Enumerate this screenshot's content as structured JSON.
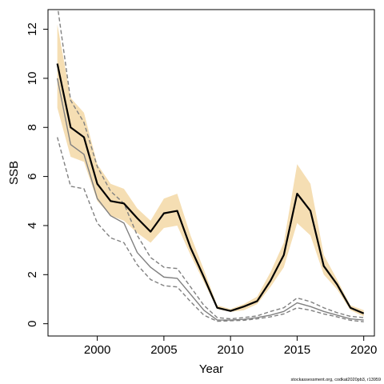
{
  "chart_data": {
    "type": "line",
    "xlabel": "Year",
    "ylabel": "SSB",
    "xlim": [
      1996.3,
      2020.8
    ],
    "ylim": [
      -0.5,
      12.8
    ],
    "x_ticks": [
      2000,
      2005,
      2010,
      2015,
      2020
    ],
    "y_ticks": [
      0,
      2,
      4,
      6,
      8,
      10,
      12
    ],
    "grid": false,
    "legend": "none",
    "footnote": "stockassessment.org, codkat2020pb3, r13959",
    "colors": {
      "band": "#f5deb3",
      "main": "#000000",
      "reference": "#808080"
    },
    "x": [
      1997,
      1998,
      1999,
      2000,
      2001,
      2002,
      2003,
      2004,
      2005,
      2006,
      2007,
      2008,
      2009,
      2010,
      2011,
      2012,
      2013,
      2014,
      2015,
      2016,
      2017,
      2018,
      2019,
      2020
    ],
    "band": {
      "lower": [
        8.8,
        6.8,
        6.6,
        5.0,
        4.4,
        4.2,
        3.7,
        3.3,
        3.9,
        4.0,
        2.8,
        1.7,
        0.6,
        0.48,
        0.55,
        0.8,
        1.5,
        2.3,
        4.1,
        3.6,
        2.0,
        1.4,
        0.55,
        0.3
      ],
      "upper": [
        12.2,
        9.2,
        8.6,
        6.5,
        5.7,
        5.5,
        4.7,
        4.2,
        5.1,
        5.3,
        3.6,
        2.2,
        0.75,
        0.6,
        0.8,
        1.1,
        2.1,
        3.3,
        6.5,
        5.7,
        2.8,
        1.8,
        0.75,
        0.55
      ]
    },
    "series": [
      {
        "style": "solid-black",
        "values": [
          10.6,
          8.0,
          7.6,
          5.7,
          5.0,
          4.9,
          4.3,
          3.75,
          4.5,
          4.6,
          3.1,
          1.9,
          0.65,
          0.52,
          0.7,
          0.92,
          1.75,
          2.8,
          5.3,
          4.6,
          2.35,
          1.6,
          0.65,
          0.42
        ]
      },
      {
        "style": "solid-grey",
        "values": [
          10.0,
          7.3,
          6.9,
          5.1,
          4.4,
          4.1,
          2.9,
          2.3,
          1.9,
          1.85,
          1.2,
          0.55,
          0.15,
          0.15,
          0.18,
          0.25,
          0.35,
          0.5,
          0.85,
          0.7,
          0.5,
          0.35,
          0.2,
          0.15
        ]
      },
      {
        "style": "dashed-grey",
        "values": [
          13.0,
          9.1,
          8.2,
          6.4,
          5.4,
          4.9,
          3.6,
          2.7,
          2.3,
          2.25,
          1.5,
          0.75,
          0.25,
          0.2,
          0.25,
          0.32,
          0.5,
          0.65,
          1.05,
          0.9,
          0.65,
          0.45,
          0.3,
          0.25
        ]
      },
      {
        "style": "dashed-grey",
        "values": [
          7.6,
          5.6,
          5.5,
          4.1,
          3.5,
          3.3,
          2.4,
          1.8,
          1.55,
          1.5,
          0.9,
          0.35,
          0.1,
          0.12,
          0.14,
          0.2,
          0.28,
          0.4,
          0.65,
          0.55,
          0.4,
          0.28,
          0.14,
          0.08
        ]
      }
    ]
  }
}
